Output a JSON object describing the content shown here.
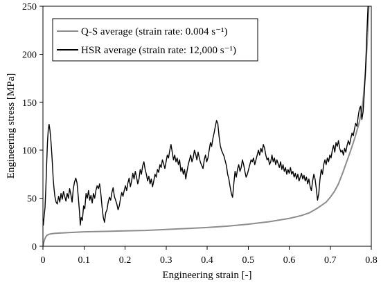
{
  "chart_data": {
    "type": "line",
    "xlabel": "Engineering strain [-]",
    "ylabel": "Engineering stress [MPa]",
    "xlim": [
      0,
      0.8
    ],
    "ylim": [
      0,
      250
    ],
    "xticks": [
      0,
      0.1,
      0.2,
      0.3,
      0.4,
      0.5,
      0.6,
      0.7,
      0.8
    ],
    "xtick_labels": [
      "0",
      "0.1",
      "0.2",
      "0.3",
      "0.4",
      "0.5",
      "0.6",
      "0.7",
      "0.8"
    ],
    "yticks": [
      0,
      50,
      100,
      150,
      200,
      250
    ],
    "ytick_labels": [
      "0",
      "50",
      "100",
      "150",
      "200",
      "250"
    ],
    "grid": false,
    "legend": {
      "position": "top-left",
      "frame": true
    },
    "series": [
      {
        "name": "Q-S average (strain rate: 0.004 s⁻¹)",
        "color": "#8c8c8c",
        "points": [
          [
            0,
            0
          ],
          [
            0.002,
            4
          ],
          [
            0.004,
            7
          ],
          [
            0.006,
            9
          ],
          [
            0.008,
            10.5
          ],
          [
            0.01,
            11.5
          ],
          [
            0.015,
            12.5
          ],
          [
            0.02,
            13
          ],
          [
            0.03,
            13.5
          ],
          [
            0.05,
            14
          ],
          [
            0.1,
            15
          ],
          [
            0.15,
            15.5
          ],
          [
            0.2,
            16
          ],
          [
            0.25,
            16.5
          ],
          [
            0.3,
            17.5
          ],
          [
            0.35,
            18.5
          ],
          [
            0.4,
            19.5
          ],
          [
            0.45,
            21
          ],
          [
            0.5,
            23
          ],
          [
            0.55,
            25.5
          ],
          [
            0.6,
            29
          ],
          [
            0.63,
            32
          ],
          [
            0.65,
            35
          ],
          [
            0.67,
            40
          ],
          [
            0.69,
            46
          ],
          [
            0.7,
            51
          ],
          [
            0.71,
            57
          ],
          [
            0.72,
            65
          ],
          [
            0.73,
            76
          ],
          [
            0.74,
            88
          ],
          [
            0.75,
            100
          ],
          [
            0.76,
            113
          ],
          [
            0.77,
            128
          ],
          [
            0.775,
            138
          ],
          [
            0.78,
            152
          ],
          [
            0.785,
            176
          ],
          [
            0.79,
            212
          ],
          [
            0.794,
            250
          ]
        ]
      },
      {
        "name": "HSR average (strain rate: 12,000 s⁻¹)",
        "color": "#000000",
        "points": [
          [
            0,
            28
          ],
          [
            0.001,
            22
          ],
          [
            0.003,
            32
          ],
          [
            0.005,
            40
          ],
          [
            0.007,
            60
          ],
          [
            0.009,
            85
          ],
          [
            0.011,
            108
          ],
          [
            0.013,
            122
          ],
          [
            0.015,
            127
          ],
          [
            0.017,
            121
          ],
          [
            0.019,
            112
          ],
          [
            0.021,
            100
          ],
          [
            0.023,
            86
          ],
          [
            0.025,
            70
          ],
          [
            0.027,
            60
          ],
          [
            0.029,
            52
          ],
          [
            0.032,
            46
          ],
          [
            0.035,
            44
          ],
          [
            0.038,
            52
          ],
          [
            0.041,
            46
          ],
          [
            0.044,
            55
          ],
          [
            0.047,
            49
          ],
          [
            0.05,
            57
          ],
          [
            0.053,
            52
          ],
          [
            0.056,
            47
          ],
          [
            0.059,
            55
          ],
          [
            0.062,
            50
          ],
          [
            0.065,
            60
          ],
          [
            0.068,
            54
          ],
          [
            0.071,
            46
          ],
          [
            0.074,
            60
          ],
          [
            0.077,
            67
          ],
          [
            0.08,
            71
          ],
          [
            0.083,
            66
          ],
          [
            0.086,
            52
          ],
          [
            0.089,
            36
          ],
          [
            0.091,
            22
          ],
          [
            0.093,
            30
          ],
          [
            0.096,
            27
          ],
          [
            0.099,
            42
          ],
          [
            0.102,
            39
          ],
          [
            0.105,
            55
          ],
          [
            0.108,
            50
          ],
          [
            0.111,
            58
          ],
          [
            0.114,
            48
          ],
          [
            0.117,
            53
          ],
          [
            0.12,
            45
          ],
          [
            0.123,
            55
          ],
          [
            0.126,
            50
          ],
          [
            0.129,
            58
          ],
          [
            0.132,
            63
          ],
          [
            0.135,
            60
          ],
          [
            0.138,
            65
          ],
          [
            0.141,
            55
          ],
          [
            0.144,
            41
          ],
          [
            0.147,
            30
          ],
          [
            0.15,
            25
          ],
          [
            0.153,
            35
          ],
          [
            0.156,
            38
          ],
          [
            0.159,
            46
          ],
          [
            0.162,
            51
          ],
          [
            0.165,
            48
          ],
          [
            0.168,
            56
          ],
          [
            0.171,
            61
          ],
          [
            0.174,
            52
          ],
          [
            0.177,
            48
          ],
          [
            0.18,
            44
          ],
          [
            0.183,
            38
          ],
          [
            0.186,
            42
          ],
          [
            0.189,
            50
          ],
          [
            0.192,
            56
          ],
          [
            0.195,
            52
          ],
          [
            0.198,
            58
          ],
          [
            0.201,
            63
          ],
          [
            0.204,
            58
          ],
          [
            0.207,
            66
          ],
          [
            0.21,
            71
          ],
          [
            0.213,
            62
          ],
          [
            0.216,
            68
          ],
          [
            0.219,
            76
          ],
          [
            0.222,
            70
          ],
          [
            0.225,
            78
          ],
          [
            0.228,
            72
          ],
          [
            0.231,
            65
          ],
          [
            0.234,
            70
          ],
          [
            0.237,
            80
          ],
          [
            0.24,
            75
          ],
          [
            0.243,
            84
          ],
          [
            0.246,
            88
          ],
          [
            0.249,
            80
          ],
          [
            0.252,
            75
          ],
          [
            0.255,
            68
          ],
          [
            0.258,
            73
          ],
          [
            0.261,
            65
          ],
          [
            0.264,
            70
          ],
          [
            0.267,
            62
          ],
          [
            0.27,
            68
          ],
          [
            0.273,
            75
          ],
          [
            0.276,
            72
          ],
          [
            0.279,
            80
          ],
          [
            0.282,
            77
          ],
          [
            0.285,
            85
          ],
          [
            0.288,
            82
          ],
          [
            0.291,
            90
          ],
          [
            0.294,
            86
          ],
          [
            0.297,
            81
          ],
          [
            0.3,
            88
          ],
          [
            0.303,
            95
          ],
          [
            0.306,
            92
          ],
          [
            0.309,
            100
          ],
          [
            0.312,
            106
          ],
          [
            0.315,
            98
          ],
          [
            0.318,
            90
          ],
          [
            0.321,
            95
          ],
          [
            0.324,
            88
          ],
          [
            0.327,
            92
          ],
          [
            0.33,
            85
          ],
          [
            0.333,
            90
          ],
          [
            0.336,
            78
          ],
          [
            0.339,
            82
          ],
          [
            0.342,
            75
          ],
          [
            0.345,
            80
          ],
          [
            0.348,
            70
          ],
          [
            0.351,
            78
          ],
          [
            0.354,
            85
          ],
          [
            0.357,
            90
          ],
          [
            0.36,
            95
          ],
          [
            0.363,
            88
          ],
          [
            0.366,
            92
          ],
          [
            0.369,
            100
          ],
          [
            0.372,
            96
          ],
          [
            0.375,
            90
          ],
          [
            0.378,
            98
          ],
          [
            0.381,
            92
          ],
          [
            0.384,
            87
          ],
          [
            0.387,
            84
          ],
          [
            0.39,
            81
          ],
          [
            0.393,
            90
          ],
          [
            0.396,
            95
          ],
          [
            0.399,
            88
          ],
          [
            0.402,
            92
          ],
          [
            0.405,
            100
          ],
          [
            0.408,
            108
          ],
          [
            0.411,
            104
          ],
          [
            0.414,
            112
          ],
          [
            0.417,
            118
          ],
          [
            0.42,
            125
          ],
          [
            0.423,
            131
          ],
          [
            0.426,
            128
          ],
          [
            0.429,
            115
          ],
          [
            0.432,
            105
          ],
          [
            0.435,
            100
          ],
          [
            0.438,
            97
          ],
          [
            0.441,
            94
          ],
          [
            0.444,
            89
          ],
          [
            0.447,
            84
          ],
          [
            0.45,
            75
          ],
          [
            0.453,
            70
          ],
          [
            0.456,
            62
          ],
          [
            0.459,
            55
          ],
          [
            0.462,
            51
          ],
          [
            0.465,
            65
          ],
          [
            0.468,
            78
          ],
          [
            0.471,
            72
          ],
          [
            0.474,
            80
          ],
          [
            0.477,
            85
          ],
          [
            0.48,
            78
          ],
          [
            0.483,
            82
          ],
          [
            0.486,
            90
          ],
          [
            0.489,
            85
          ],
          [
            0.492,
            78
          ],
          [
            0.495,
            72
          ],
          [
            0.498,
            75
          ],
          [
            0.501,
            80
          ],
          [
            0.504,
            85
          ],
          [
            0.507,
            90
          ],
          [
            0.51,
            88
          ],
          [
            0.513,
            92
          ],
          [
            0.516,
            85
          ],
          [
            0.519,
            90
          ],
          [
            0.522,
            95
          ],
          [
            0.525,
            100
          ],
          [
            0.528,
            95
          ],
          [
            0.531,
            102
          ],
          [
            0.534,
            98
          ],
          [
            0.537,
            106
          ],
          [
            0.54,
            102
          ],
          [
            0.543,
            95
          ],
          [
            0.546,
            90
          ],
          [
            0.549,
            92
          ],
          [
            0.552,
            85
          ],
          [
            0.555,
            88
          ],
          [
            0.558,
            95
          ],
          [
            0.561,
            88
          ],
          [
            0.564,
            92
          ],
          [
            0.567,
            85
          ],
          [
            0.57,
            90
          ],
          [
            0.573,
            86
          ],
          [
            0.576,
            82
          ],
          [
            0.579,
            88
          ],
          [
            0.582,
            80
          ],
          [
            0.585,
            85
          ],
          [
            0.588,
            78
          ],
          [
            0.591,
            82
          ],
          [
            0.594,
            75
          ],
          [
            0.597,
            80
          ],
          [
            0.6,
            76
          ],
          [
            0.603,
            82
          ],
          [
            0.606,
            75
          ],
          [
            0.609,
            78
          ],
          [
            0.612,
            72
          ],
          [
            0.615,
            76
          ],
          [
            0.618,
            70
          ],
          [
            0.621,
            75
          ],
          [
            0.624,
            68
          ],
          [
            0.627,
            72
          ],
          [
            0.63,
            76
          ],
          [
            0.633,
            70
          ],
          [
            0.636,
            74
          ],
          [
            0.639,
            68
          ],
          [
            0.642,
            72
          ],
          [
            0.645,
            65
          ],
          [
            0.648,
            70
          ],
          [
            0.651,
            62
          ],
          [
            0.654,
            58
          ],
          [
            0.657,
            68
          ],
          [
            0.66,
            75
          ],
          [
            0.663,
            70
          ],
          [
            0.666,
            60
          ],
          [
            0.669,
            48
          ],
          [
            0.672,
            55
          ],
          [
            0.675,
            70
          ],
          [
            0.678,
            80
          ],
          [
            0.681,
            75
          ],
          [
            0.684,
            85
          ],
          [
            0.687,
            90
          ],
          [
            0.69,
            85
          ],
          [
            0.693,
            92
          ],
          [
            0.696,
            88
          ],
          [
            0.699,
            95
          ],
          [
            0.702,
            92
          ],
          [
            0.705,
            100
          ],
          [
            0.708,
            105
          ],
          [
            0.711,
            98
          ],
          [
            0.714,
            108
          ],
          [
            0.717,
            104
          ],
          [
            0.72,
            110
          ],
          [
            0.723,
            102
          ],
          [
            0.726,
            98
          ],
          [
            0.729,
            100
          ],
          [
            0.732,
            95
          ],
          [
            0.735,
            102
          ],
          [
            0.738,
            98
          ],
          [
            0.741,
            105
          ],
          [
            0.744,
            110
          ],
          [
            0.747,
            106
          ],
          [
            0.75,
            112
          ],
          [
            0.753,
            118
          ],
          [
            0.756,
            115
          ],
          [
            0.759,
            122
          ],
          [
            0.762,
            128
          ],
          [
            0.765,
            125
          ],
          [
            0.768,
            135
          ],
          [
            0.771,
            143
          ],
          [
            0.774,
            146
          ],
          [
            0.777,
            132
          ],
          [
            0.78,
            140
          ],
          [
            0.783,
            160
          ],
          [
            0.786,
            185
          ],
          [
            0.789,
            220
          ],
          [
            0.792,
            250
          ]
        ]
      }
    ]
  }
}
